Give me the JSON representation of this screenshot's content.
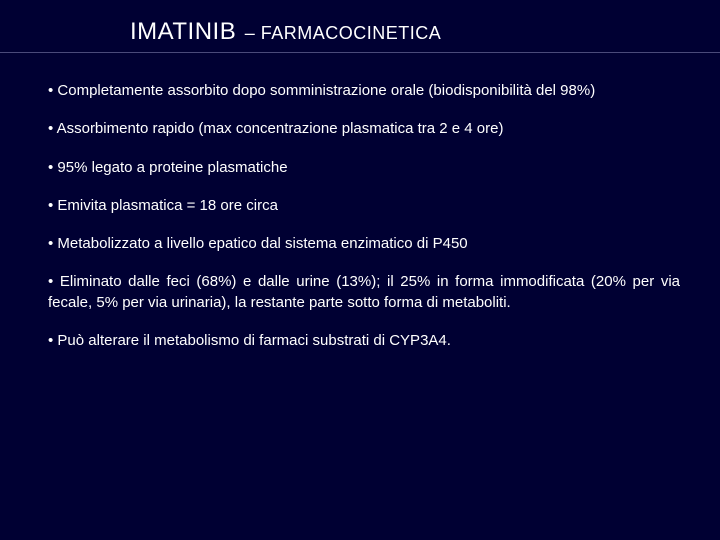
{
  "title": {
    "main": "IMATINIB",
    "sub": "– FARMACOCINETICA"
  },
  "bullets": [
    "• Completamente assorbito dopo somministrazione orale (biodisponibilità del 98%)",
    "• Assorbimento rapido (max concentrazione plasmatica tra 2 e 4 ore)",
    "• 95% legato a proteine plasmatiche",
    "• Emivita plasmatica = 18 ore circa",
    "• Metabolizzato a livello epatico dal sistema enzimatico di P450",
    "• Eliminato dalle feci (68%) e dalle urine (13%); il 25% in forma immodificata (20% per via fecale, 5% per via urinaria), la restante parte sotto forma di metaboliti.",
    "• Può alterare il metabolismo di farmaci substrati di CYP3A4."
  ],
  "colors": {
    "background": "#000033",
    "text": "#ffffff",
    "divider": "#4a4a7a"
  }
}
